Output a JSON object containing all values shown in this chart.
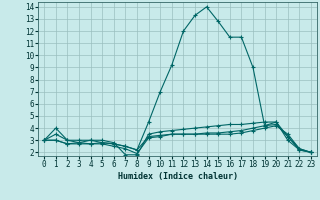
{
  "xlabel": "Humidex (Indice chaleur)",
  "bg_color": "#c8eaea",
  "grid_color": "#9bbfbf",
  "line_color": "#006666",
  "xticks": [
    0,
    1,
    2,
    3,
    4,
    5,
    6,
    7,
    8,
    9,
    10,
    11,
    12,
    13,
    14,
    15,
    16,
    17,
    18,
    19,
    20,
    21,
    22,
    23
  ],
  "yticks": [
    2,
    3,
    4,
    5,
    6,
    7,
    8,
    9,
    10,
    11,
    12,
    13,
    14
  ],
  "xlim": [
    -0.5,
    23.5
  ],
  "ylim": [
    1.7,
    14.4
  ],
  "series": [
    [
      3.0,
      4.0,
      3.0,
      3.0,
      3.0,
      3.0,
      2.8,
      1.8,
      1.8,
      3.5,
      3.7,
      3.8,
      3.9,
      4.0,
      4.1,
      4.2,
      4.3,
      4.3,
      4.4,
      4.5,
      4.5,
      3.0,
      2.2,
      2.0
    ],
    [
      3.0,
      3.0,
      2.7,
      2.8,
      2.7,
      2.8,
      2.7,
      2.5,
      2.2,
      3.3,
      3.4,
      3.5,
      3.5,
      3.5,
      3.6,
      3.6,
      3.7,
      3.8,
      4.0,
      4.2,
      4.3,
      3.3,
      2.2,
      2.0
    ],
    [
      3.0,
      3.0,
      2.7,
      2.7,
      2.7,
      2.7,
      2.5,
      2.3,
      1.9,
      3.2,
      3.3,
      3.5,
      3.5,
      3.5,
      3.5,
      3.5,
      3.5,
      3.6,
      3.8,
      4.0,
      4.2,
      3.5,
      2.3,
      2.0
    ],
    [
      3.0,
      3.5,
      3.0,
      2.8,
      3.0,
      2.8,
      2.7,
      2.5,
      2.2,
      4.5,
      7.0,
      9.2,
      12.0,
      13.3,
      14.0,
      12.8,
      11.5,
      11.5,
      9.0,
      4.2,
      4.5,
      3.3,
      2.3,
      2.0
    ]
  ]
}
